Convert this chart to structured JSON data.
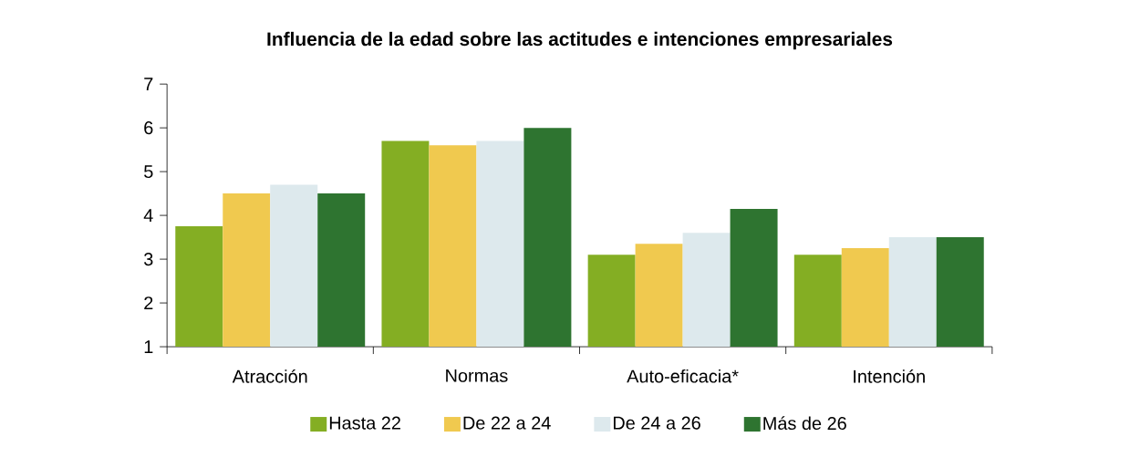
{
  "chart_data": {
    "type": "bar",
    "title": "Influencia de la edad sobre las actitudes e intenciones empresariales",
    "categories": [
      "Atracción",
      "Normas",
      "Auto-eficacia*",
      "Intención"
    ],
    "series": [
      {
        "name": "Hasta 22",
        "color": "#84ae23",
        "values": [
          3.75,
          5.7,
          3.1,
          3.1
        ]
      },
      {
        "name": "De 22 a 24",
        "color": "#f0c94f",
        "values": [
          4.5,
          5.6,
          3.35,
          3.25
        ]
      },
      {
        "name": "De 24 a 26",
        "color": "#dde9ed",
        "values": [
          4.7,
          5.7,
          3.6,
          3.5
        ]
      },
      {
        "name": "Más de 26",
        "color": "#2e7430",
        "values": [
          4.5,
          6.0,
          4.15,
          3.5
        ]
      }
    ],
    "ylim": [
      1,
      7
    ],
    "yticks": [
      1,
      2,
      3,
      4,
      5,
      6,
      7
    ],
    "grid": false,
    "legend": "bottom"
  }
}
